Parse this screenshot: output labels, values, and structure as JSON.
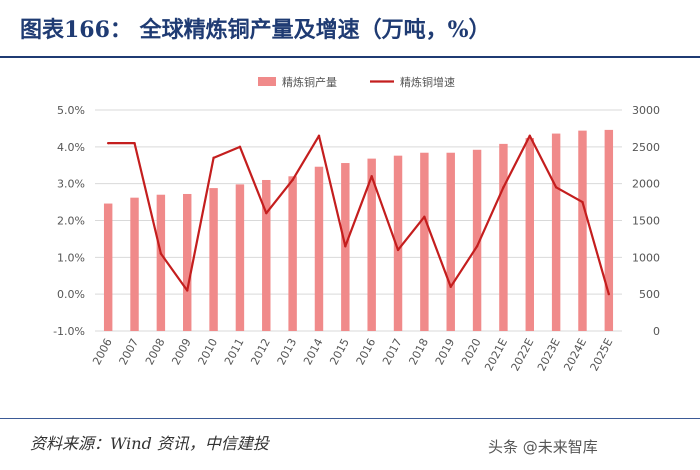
{
  "figure": {
    "title": "图表166： 全球精炼铜产量及增速（万吨，%）",
    "source": "资料来源：Wind 资讯，中信建投",
    "watermark": "头条 @未来智库"
  },
  "chart_data": {
    "type": "bar",
    "categories": [
      "2006",
      "2007",
      "2008",
      "2009",
      "2010",
      "2011",
      "2012",
      "2013",
      "2014",
      "2015",
      "2016",
      "2017",
      "2018",
      "2019",
      "2020",
      "2021E",
      "2022E",
      "2023E",
      "2024E",
      "2025E"
    ],
    "series": [
      {
        "name": "精炼铜产量",
        "type": "bar",
        "axis": "right",
        "color": "#f08a8a",
        "values": [
          1730,
          1810,
          1850,
          1860,
          1940,
          1990,
          2050,
          2100,
          2230,
          2280,
          2340,
          2380,
          2420,
          2420,
          2460,
          2540,
          2620,
          2680,
          2720,
          2730
        ]
      },
      {
        "name": "精炼铜增速",
        "type": "line",
        "axis": "left",
        "color": "#c41e1e",
        "values": [
          4.1,
          4.1,
          1.1,
          0.1,
          3.7,
          4.0,
          2.2,
          3.1,
          4.3,
          1.3,
          3.2,
          1.2,
          2.1,
          0.2,
          1.3,
          2.9,
          4.3,
          2.9,
          2.5,
          0.0
        ]
      }
    ],
    "y_left": {
      "min": -1.0,
      "max": 5.0,
      "ticks": [
        "-1.0%",
        "0.0%",
        "1.0%",
        "2.0%",
        "3.0%",
        "4.0%",
        "5.0%"
      ]
    },
    "y_right": {
      "min": 0,
      "max": 3000,
      "ticks": [
        "0",
        "500",
        "1000",
        "1500",
        "2000",
        "2500",
        "3000"
      ]
    },
    "grid": true,
    "legend_position": "top"
  }
}
